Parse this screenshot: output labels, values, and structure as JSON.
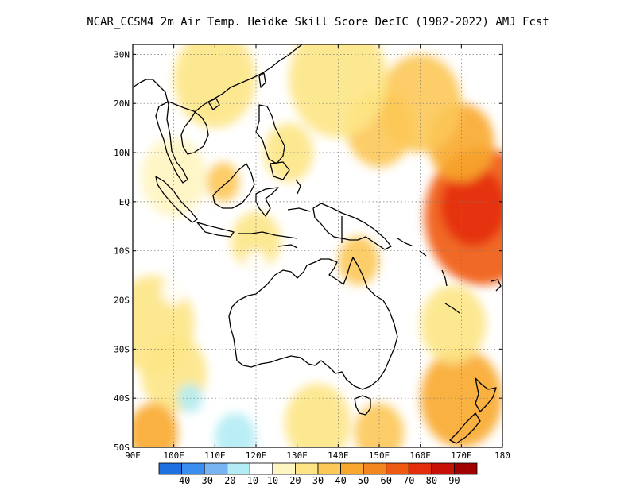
{
  "title": "NCAR_CCSM4  2m Air Temp. Heidke Skill Score DecIC (1982-2022) AMJ Fcst",
  "map": {
    "lon_range": [
      90,
      180
    ],
    "lat_range": [
      -50,
      32
    ],
    "x_ticks": [
      {
        "value": 90,
        "label": "90E"
      },
      {
        "value": 100,
        "label": "100E"
      },
      {
        "value": 110,
        "label": "110E"
      },
      {
        "value": 120,
        "label": "120E"
      },
      {
        "value": 130,
        "label": "130E"
      },
      {
        "value": 140,
        "label": "140E"
      },
      {
        "value": 150,
        "label": "150E"
      },
      {
        "value": 160,
        "label": "160E"
      },
      {
        "value": 170,
        "label": "170E"
      },
      {
        "value": 180,
        "label": "180"
      }
    ],
    "y_ticks": [
      {
        "value": 30,
        "label": "30N"
      },
      {
        "value": 20,
        "label": "20N"
      },
      {
        "value": 10,
        "label": "10N"
      },
      {
        "value": 0,
        "label": "EQ"
      },
      {
        "value": -10,
        "label": "10S"
      },
      {
        "value": -20,
        "label": "20S"
      },
      {
        "value": -30,
        "label": "30S"
      },
      {
        "value": -40,
        "label": "40S"
      },
      {
        "value": -50,
        "label": "50S"
      }
    ],
    "grid": true,
    "field_regions": [
      {
        "lon": 175,
        "lat": -3,
        "r": 14,
        "level": 60
      },
      {
        "lon": 173,
        "lat": -1,
        "r": 8,
        "level": 70
      },
      {
        "lon": 170,
        "lat": 12,
        "r": 8,
        "level": 40
      },
      {
        "lon": 160,
        "lat": 20,
        "r": 10,
        "level": 30
      },
      {
        "lon": 150,
        "lat": 15,
        "r": 8,
        "level": 30
      },
      {
        "lon": 140,
        "lat": 25,
        "r": 12,
        "level": 20
      },
      {
        "lon": 110,
        "lat": 25,
        "r": 10,
        "level": 20
      },
      {
        "lon": 100,
        "lat": 5,
        "r": 8,
        "level": 10
      },
      {
        "lon": 95,
        "lat": -25,
        "r": 10,
        "level": 20
      },
      {
        "lon": 100,
        "lat": -35,
        "r": 8,
        "level": 20
      },
      {
        "lon": 95,
        "lat": -47,
        "r": 6,
        "level": 40
      },
      {
        "lon": 170,
        "lat": -40,
        "r": 10,
        "level": 40
      },
      {
        "lon": 168,
        "lat": -25,
        "r": 8,
        "level": 20
      },
      {
        "lon": 135,
        "lat": -45,
        "r": 8,
        "level": 20
      },
      {
        "lon": 150,
        "lat": -47,
        "r": 6,
        "level": 30
      },
      {
        "lon": 120,
        "lat": -8,
        "r": 6,
        "level": 20
      },
      {
        "lon": 145,
        "lat": -12,
        "r": 5,
        "level": 30
      },
      {
        "lon": 128,
        "lat": 10,
        "r": 6,
        "level": 20
      },
      {
        "lon": 112,
        "lat": 4,
        "r": 4,
        "level": 30
      },
      {
        "lon": 104,
        "lat": -40,
        "r": 3,
        "level": -20
      },
      {
        "lon": 115,
        "lat": -48,
        "r": 5,
        "level": -20
      },
      {
        "lon": 100,
        "lat": -18,
        "r": 3,
        "level": -10
      },
      {
        "lon": 120,
        "lat": -13,
        "r": 3,
        "level": -10
      }
    ]
  },
  "colorbar": {
    "colors": [
      "#1e6fe0",
      "#3b8ef0",
      "#78b4f2",
      "#b3ecf5",
      "#ffffff",
      "#fff5c2",
      "#fde586",
      "#fcc857",
      "#f8a82f",
      "#f4861f",
      "#ef5a12",
      "#e42d0a",
      "#c81106",
      "#a00000"
    ],
    "labels": [
      "-40",
      "-30",
      "-20",
      "-10",
      "10",
      "20",
      "30",
      "40",
      "50",
      "60",
      "70",
      "80",
      "90"
    ]
  }
}
